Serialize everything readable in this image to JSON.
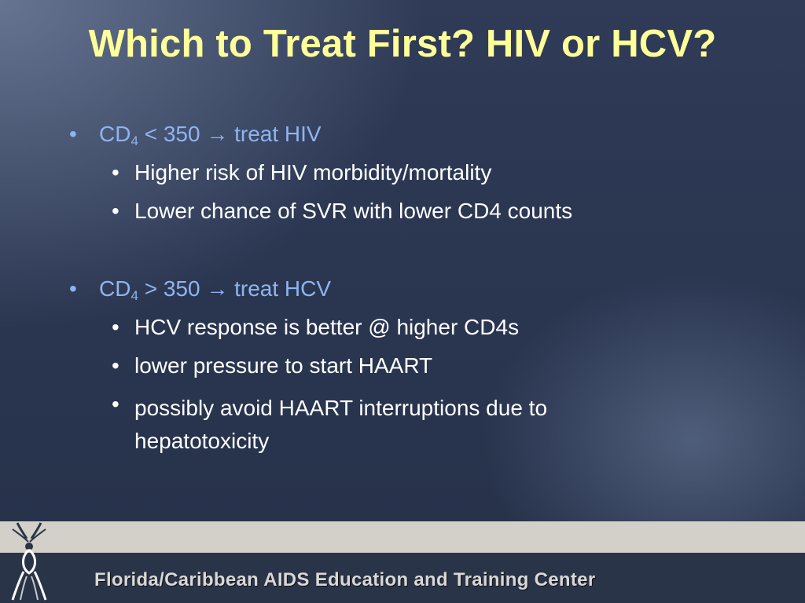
{
  "slide": {
    "title": "Which to Treat First? HIV or HCV?",
    "bullets": [
      {
        "prefix": "CD",
        "subscript": "4",
        "rest": " < 350 → treat HIV",
        "sub_items": [
          "Higher risk of HIV morbidity/mortality",
          "Lower chance of SVR with lower CD4 counts"
        ]
      },
      {
        "prefix": "CD",
        "subscript": "4",
        "rest": " > 350 → treat HCV",
        "sub_items": [
          "HCV response is better @ higher CD4s",
          "lower pressure to start HAART",
          "possibly avoid HAART interruptions due to hepatotoxicity"
        ]
      }
    ],
    "bullet_char": "•"
  },
  "footer": {
    "organization": "Florida/Caribbean AIDS Education and Training Center",
    "logo_icon": "ribbon-figure-logo"
  },
  "colors": {
    "title": "#ffff99",
    "level1": "#8fb4f0",
    "level2": "#ffffff",
    "footer_band": "#2a3448",
    "footer_strip": "#d3cfc9"
  }
}
